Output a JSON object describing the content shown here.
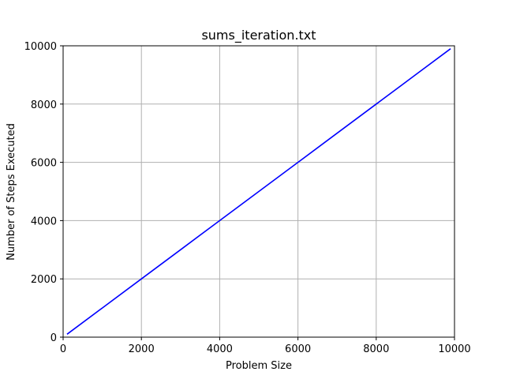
{
  "chart_data": {
    "type": "line",
    "title": "sums_iteration.txt",
    "xlabel": "Problem Size",
    "ylabel": "Number of Steps Executed",
    "xlim": [
      0,
      10000
    ],
    "ylim": [
      0,
      10000
    ],
    "xticks": [
      0,
      2000,
      4000,
      6000,
      8000,
      10000
    ],
    "yticks": [
      0,
      2000,
      4000,
      6000,
      8000,
      10000
    ],
    "grid": true,
    "series": [
      {
        "color": "#0000ff",
        "x": [
          100,
          1000,
          2000,
          3000,
          4000,
          5000,
          6000,
          7000,
          8000,
          9000,
          9900
        ],
        "y": [
          100,
          1000,
          2000,
          3000,
          4000,
          5000,
          6000,
          7000,
          8000,
          9000,
          9900
        ]
      }
    ]
  }
}
